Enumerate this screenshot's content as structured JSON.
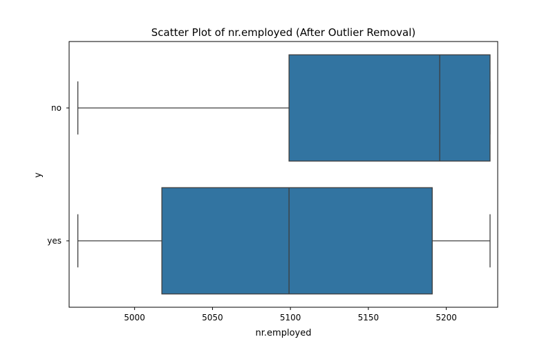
{
  "chart_data": {
    "type": "boxplot",
    "orientation": "horizontal",
    "title": "Scatter Plot of nr.employed (After Outlier Removal)",
    "xlabel": "nr.employed",
    "ylabel": "y",
    "xlim": [
      4958.0,
      5233.0
    ],
    "xticks": [
      5000,
      5050,
      5100,
      5150,
      5200
    ],
    "grid": false,
    "legend": "none",
    "box_color": "#3274a1",
    "line_color": "#3d3d3d",
    "categories": [
      "no",
      "yes"
    ],
    "boxes": [
      {
        "category": "no",
        "whisker_low": 4963.6,
        "q1": 5099.1,
        "median": 5195.8,
        "q3": 5228.1,
        "whisker_high": 5228.1
      },
      {
        "category": "yes",
        "whisker_low": 4963.6,
        "q1": 5017.5,
        "median": 5099.1,
        "q3": 5191.0,
        "whisker_high": 5228.1
      }
    ]
  }
}
